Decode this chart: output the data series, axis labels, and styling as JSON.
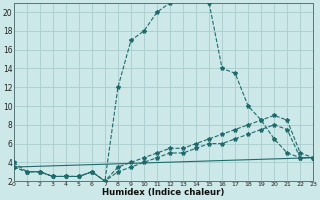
{
  "xlabel": "Humidex (Indice chaleur)",
  "bg_color": "#cce8e8",
  "grid_color": "#aacccc",
  "line_color": "#1f6b6b",
  "xlim": [
    0,
    23
  ],
  "ylim": [
    2,
    21
  ],
  "xticks": [
    0,
    1,
    2,
    3,
    4,
    5,
    6,
    7,
    8,
    9,
    10,
    11,
    12,
    13,
    14,
    15,
    16,
    17,
    18,
    19,
    20,
    21,
    22,
    23
  ],
  "yticks": [
    2,
    4,
    6,
    8,
    10,
    12,
    14,
    16,
    18,
    20
  ],
  "curve1_x": [
    0,
    1,
    2,
    3,
    4,
    5,
    6,
    7,
    8,
    9,
    10,
    11,
    12,
    13,
    14,
    15,
    16,
    17,
    18,
    19,
    20,
    21,
    22,
    23
  ],
  "curve1_y": [
    4,
    3,
    3,
    2.5,
    2.5,
    2.5,
    3,
    2,
    12,
    17,
    18,
    20,
    21,
    21.5,
    21.5,
    21,
    14,
    13.5,
    10,
    8.5,
    6.5,
    5,
    4.5,
    4.5
  ],
  "curve2_x": [
    0,
    1,
    2,
    3,
    4,
    5,
    6,
    7,
    8,
    9,
    10,
    11,
    12,
    13,
    14,
    15,
    16,
    17,
    18,
    19,
    20,
    21,
    22,
    23
  ],
  "curve2_y": [
    3.5,
    3,
    3,
    2.5,
    2.5,
    2.5,
    3,
    2,
    3.5,
    4,
    4.5,
    5,
    5.5,
    5.5,
    6,
    6.5,
    7,
    7.5,
    8,
    8.5,
    9,
    8.5,
    5,
    4.5
  ],
  "curve3_x": [
    0,
    1,
    2,
    3,
    4,
    5,
    6,
    7,
    8,
    9,
    10,
    11,
    12,
    13,
    14,
    15,
    16,
    17,
    18,
    19,
    20,
    21,
    22,
    23
  ],
  "curve3_y": [
    3.5,
    3,
    3,
    2.5,
    2.5,
    2.5,
    3,
    2,
    3,
    3.5,
    4,
    4.5,
    5,
    5,
    5.5,
    6,
    6,
    6.5,
    7,
    7.5,
    8,
    7.5,
    4.5,
    4.5
  ],
  "curve4_x": [
    0,
    23
  ],
  "curve4_y": [
    3.5,
    4.5
  ]
}
